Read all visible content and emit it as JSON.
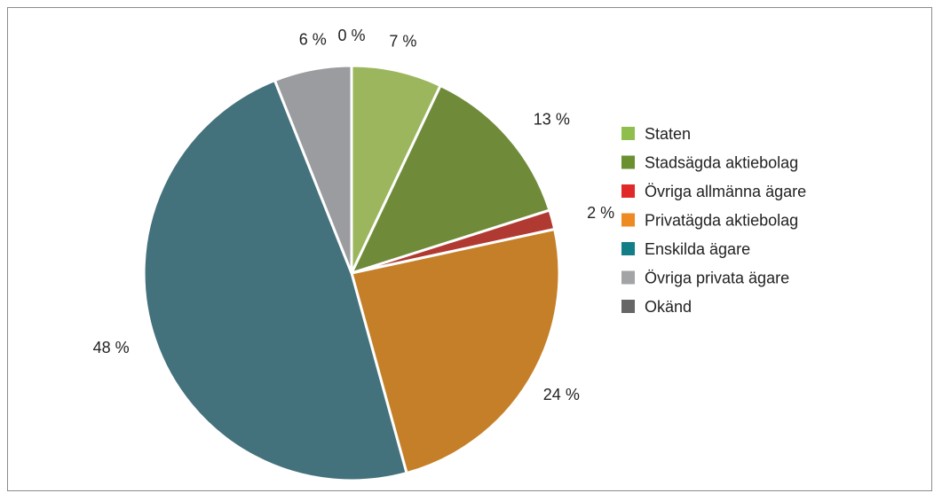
{
  "chart_data": {
    "type": "pie",
    "title": "",
    "slices": [
      {
        "name": "Staten",
        "value": 7,
        "label": "7 %",
        "color": "#9bb65c"
      },
      {
        "name": "Stadsägda aktiebolag",
        "value": 13,
        "label": "13 %",
        "color": "#6f8b3a"
      },
      {
        "name": "Övriga allmänna ägare",
        "value": 1.5,
        "label": "2 %",
        "color": "#b03a32"
      },
      {
        "name": "Privatägda aktiebolag",
        "value": 24,
        "label": "24 %",
        "color": "#c57f28"
      },
      {
        "name": "Enskilda ägare",
        "value": 48,
        "label": "48 %",
        "color": "#43717c"
      },
      {
        "name": "Övriga privata ägare",
        "value": 6,
        "label": "6 %",
        "color": "#9b9c9f"
      },
      {
        "name": "Okänd",
        "value": 0,
        "label": "0 %",
        "color": "#6b6b6b"
      }
    ],
    "legend": {
      "position": "right",
      "entries": [
        {
          "name": "Staten",
          "color": "#8fbe4d"
        },
        {
          "name": "Stadsägda aktiebolag",
          "color": "#6a9030"
        },
        {
          "name": "Övriga allmänna ägare",
          "color": "#e02a2a"
        },
        {
          "name": "Privatägda aktiebolag",
          "color": "#ee8a22"
        },
        {
          "name": "Enskilda ägare",
          "color": "#137e85"
        },
        {
          "name": "Övriga privata ägare",
          "color": "#a3a4a6"
        },
        {
          "name": "Okänd",
          "color": "#666666"
        }
      ]
    }
  }
}
